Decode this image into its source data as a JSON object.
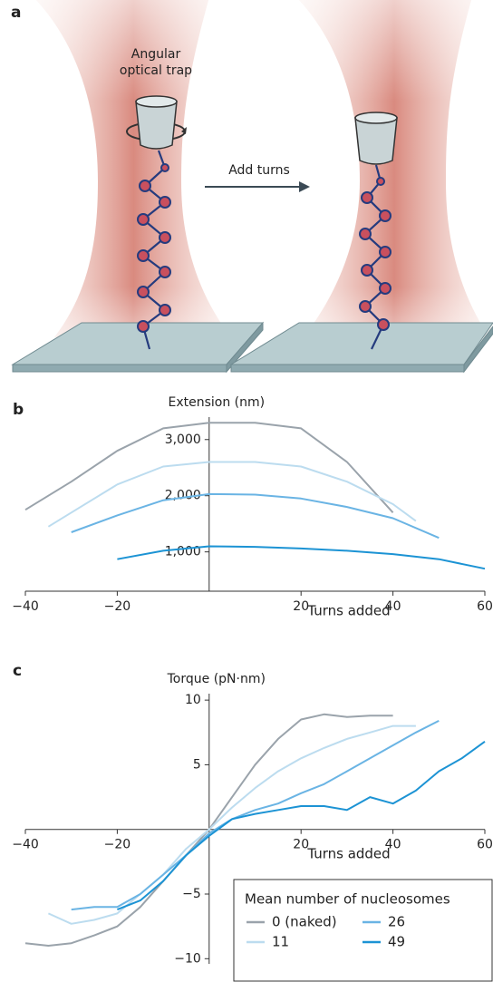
{
  "panel_a": {
    "label": "a",
    "trap_label": [
      "Angular",
      "optical trap"
    ],
    "arrow_label": "Add turns"
  },
  "chart_data": [
    {
      "type": "line",
      "panel_label": "b",
      "y_label": "Extension (nm)",
      "x_label": "Turns added",
      "xlim": [
        -40,
        60
      ],
      "ylim": [
        300,
        3400
      ],
      "xticks": [
        {
          "value": -40,
          "label": "−40"
        },
        {
          "value": -20,
          "label": "−20"
        },
        20,
        40,
        60
      ],
      "yticks": [
        {
          "value": 1000,
          "label": "1,000"
        },
        {
          "value": 2000,
          "label": "2,000"
        },
        {
          "value": 3000,
          "label": "3,000"
        }
      ],
      "series": [
        {
          "color": "#9aa3ab",
          "x": [
            -40,
            -30,
            -20,
            -10,
            0,
            10,
            20,
            30,
            40
          ],
          "values": [
            1750,
            2250,
            2800,
            3200,
            3300,
            3300,
            3200,
            2600,
            1700
          ]
        },
        {
          "color": "#bcdcef",
          "x": [
            -35,
            -30,
            -20,
            -10,
            0,
            10,
            20,
            30,
            40,
            45
          ],
          "values": [
            1450,
            1700,
            2200,
            2520,
            2600,
            2600,
            2520,
            2250,
            1850,
            1550
          ]
        },
        {
          "color": "#6ab4e4",
          "x": [
            -30,
            -20,
            -10,
            0,
            10,
            20,
            30,
            40,
            50
          ],
          "values": [
            1350,
            1650,
            1920,
            2030,
            2020,
            1950,
            1800,
            1600,
            1250
          ]
        },
        {
          "color": "#1c93d4",
          "x": [
            -20,
            -10,
            0,
            10,
            20,
            30,
            40,
            50,
            60
          ],
          "values": [
            870,
            1020,
            1100,
            1090,
            1060,
            1020,
            960,
            870,
            700
          ]
        }
      ]
    },
    {
      "type": "line",
      "panel_label": "c",
      "y_label": "Torque (pN·nm)",
      "x_label": "Turns added",
      "xlim": [
        -40,
        60
      ],
      "ylim": [
        -10.4,
        10.5
      ],
      "xticks": [
        {
          "value": -40,
          "label": "−40"
        },
        {
          "value": -20,
          "label": "−20"
        },
        20,
        40,
        60
      ],
      "yticks": [
        {
          "value": -10,
          "label": "−10"
        },
        {
          "value": -5,
          "label": "−5"
        },
        5,
        10
      ],
      "legend_title": "Mean number of nucleosomes",
      "series": [
        {
          "name": "0 (naked)",
          "color": "#9aa3ab",
          "x": [
            -40,
            -35,
            -30,
            -25,
            -20,
            -15,
            -10,
            -5,
            0,
            5,
            10,
            15,
            20,
            25,
            30,
            35,
            40
          ],
          "values": [
            -8.8,
            -9,
            -8.8,
            -8.2,
            -7.5,
            -6,
            -4,
            -2,
            0,
            2.5,
            5,
            7,
            8.5,
            8.9,
            8.7,
            8.8,
            8.8
          ]
        },
        {
          "name": "11",
          "color": "#bcdcef",
          "x": [
            -35,
            -30,
            -25,
            -20,
            -15,
            -10,
            -5,
            0,
            5,
            10,
            15,
            20,
            25,
            30,
            35,
            40,
            45
          ],
          "values": [
            -6.5,
            -7.3,
            -7,
            -6.5,
            -5,
            -3.5,
            -1.5,
            0,
            1.7,
            3.2,
            4.5,
            5.5,
            6.3,
            7,
            7.5,
            8,
            8
          ]
        },
        {
          "name": "26",
          "color": "#6ab4e4",
          "x": [
            -30,
            -25,
            -20,
            -15,
            -10,
            -5,
            0,
            5,
            10,
            15,
            20,
            25,
            30,
            35,
            40,
            45,
            50
          ],
          "values": [
            -6.2,
            -6,
            -6,
            -5,
            -3.5,
            -2,
            -0.3,
            0.8,
            1.5,
            2,
            2.8,
            3.5,
            4.5,
            5.5,
            6.5,
            7.5,
            8.4
          ]
        },
        {
          "name": "49",
          "color": "#1c93d4",
          "x": [
            -20,
            -15,
            -10,
            -5,
            0,
            5,
            10,
            15,
            20,
            25,
            30,
            35,
            40,
            45,
            50,
            55,
            60
          ],
          "values": [
            -6.2,
            -5.5,
            -4,
            -2,
            -0.5,
            0.8,
            1.2,
            1.5,
            1.8,
            1.8,
            1.5,
            2.5,
            2,
            3,
            4.5,
            5.5,
            6.8
          ]
        }
      ]
    }
  ]
}
